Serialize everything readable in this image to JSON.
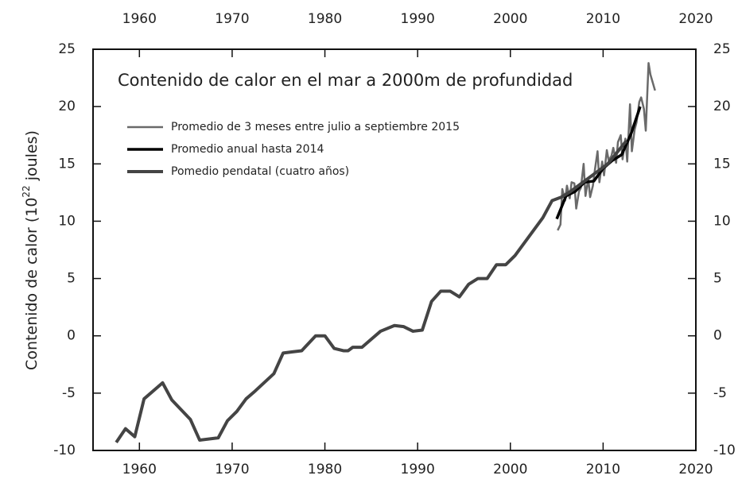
{
  "chart_data": {
    "type": "line",
    "title": "Contenido de calor en el mar a 2000m de profundidad",
    "ylabel": [
      "Contenido de calor (10",
      "22",
      " joules)"
    ],
    "xlim": [
      1955,
      2020
    ],
    "xticks": [
      1960,
      1970,
      1980,
      1990,
      2000,
      2010,
      2020
    ],
    "ylim": [
      -10,
      25
    ],
    "yticks": [
      -10,
      -5,
      0,
      5,
      10,
      15,
      20,
      25
    ],
    "legend": "upper left",
    "series": [
      {
        "name": "Promedio de 3 meses entre julio a septiembre 2015",
        "color": "#6a6a6a",
        "width": 2.5,
        "x": [
          2005.1,
          2005.4,
          2005.6,
          2005.9,
          2006.1,
          2006.4,
          2006.6,
          2006.9,
          2007.1,
          2007.4,
          2007.6,
          2007.9,
          2008.1,
          2008.4,
          2008.6,
          2008.9,
          2009.1,
          2009.4,
          2009.6,
          2009.9,
          2010.1,
          2010.4,
          2010.6,
          2010.9,
          2011.1,
          2011.4,
          2011.6,
          2011.9,
          2012.1,
          2012.4,
          2012.6,
          2012.9,
          2013.1,
          2013.4,
          2013.6,
          2013.9,
          2014.1,
          2014.4,
          2014.6,
          2014.9,
          2015.1,
          2015.6
        ],
        "values": [
          9.2,
          9.7,
          12.8,
          11.8,
          13.1,
          12.0,
          13.4,
          13.3,
          11.1,
          12.6,
          12.9,
          15.0,
          12.2,
          13.7,
          12.1,
          13.1,
          14.4,
          16.1,
          13.4,
          15.2,
          14.0,
          16.2,
          15.3,
          15.7,
          16.4,
          15.1,
          16.9,
          17.5,
          15.4,
          17.2,
          15.2,
          20.2,
          16.1,
          18.0,
          18.6,
          20.4,
          20.8,
          19.8,
          17.9,
          23.8,
          22.8,
          21.4
        ]
      },
      {
        "name": "Promedio anual hasta 2014",
        "color": "#000000",
        "width": 3.5,
        "x": [
          2005,
          2006,
          2007,
          2008,
          2009,
          2010,
          2011,
          2012,
          2013,
          2014
        ],
        "values": [
          10.2,
          12.2,
          12.6,
          13.4,
          13.5,
          14.6,
          15.3,
          15.8,
          17.6,
          20.0
        ]
      },
      {
        "name": "Pomedio pendatal (cuatro años)",
        "color": "#444444",
        "width": 4,
        "x": [
          1957.5,
          1958.5,
          1959.5,
          1960.5,
          1962.5,
          1963.5,
          1965.5,
          1966.5,
          1968.5,
          1969.5,
          1970.5,
          1971.5,
          1972.5,
          1974.5,
          1975.5,
          1976.5,
          1977.5,
          1979,
          1980,
          1981,
          1982,
          1982.5,
          1983,
          1984,
          1985,
          1986,
          1987.5,
          1988.5,
          1989.5,
          1990.5,
          1991.5,
          1992.5,
          1993.5,
          1994.5,
          1995.5,
          1996.5,
          1997.5,
          1998.5,
          1999.5,
          2000.5,
          2001.5,
          2002.5,
          2003.5,
          2004.5,
          2005.5,
          2006.5,
          2007.5,
          2008.5,
          2009.5,
          2010.5,
          2011.5,
          2012.5
        ],
        "values": [
          -9.3,
          -8.1,
          -8.8,
          -5.5,
          -4.1,
          -5.6,
          -7.3,
          -9.1,
          -8.9,
          -7.4,
          -6.6,
          -5.5,
          -4.8,
          -3.3,
          -1.5,
          -1.4,
          -1.3,
          0,
          0,
          -1.1,
          -1.3,
          -1.3,
          -1.0,
          -1.0,
          -0.3,
          0.4,
          0.9,
          0.8,
          0.4,
          0.5,
          3.0,
          3.9,
          3.9,
          3.4,
          4.5,
          5.0,
          5.0,
          6.2,
          6.2,
          7.0,
          8.1,
          9.2,
          10.3,
          11.8,
          12.1,
          12.6,
          13.2,
          13.8,
          14.4,
          15.0,
          16.0,
          17.0
        ]
      }
    ]
  }
}
